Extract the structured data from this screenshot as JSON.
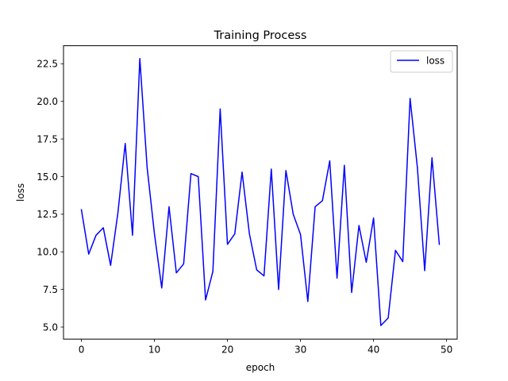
{
  "chart_data": {
    "type": "line",
    "title": "Training Process",
    "xlabel": "epoch",
    "ylabel": "loss",
    "xlim": [
      -2.45,
      51.45
    ],
    "ylim": [
      4.2,
      23.7
    ],
    "xticks": [
      0,
      10,
      20,
      30,
      40,
      50
    ],
    "yticks": [
      5.0,
      7.5,
      10.0,
      12.5,
      15.0,
      17.5,
      20.0,
      22.5
    ],
    "ytick_labels": [
      "5.0",
      "7.5",
      "10.0",
      "12.5",
      "15.0",
      "17.5",
      "20.0",
      "22.5"
    ],
    "xtick_labels": [
      "0",
      "10",
      "20",
      "30",
      "40",
      "50"
    ],
    "grid": false,
    "legend_position": "top-right",
    "series": [
      {
        "name": "loss",
        "color": "#0000ff",
        "x": [
          0,
          1,
          2,
          3,
          4,
          5,
          6,
          7,
          8,
          9,
          10,
          11,
          12,
          13,
          14,
          15,
          16,
          17,
          18,
          19,
          20,
          21,
          22,
          23,
          24,
          25,
          26,
          27,
          28,
          29,
          30,
          31,
          32,
          33,
          34,
          35,
          36,
          37,
          38,
          39,
          40,
          41,
          42,
          43,
          44,
          45,
          46,
          47,
          48,
          49
        ],
        "y": [
          12.8,
          9.85,
          11.1,
          11.6,
          9.1,
          12.6,
          17.2,
          11.1,
          22.85,
          15.6,
          11.2,
          7.6,
          13.0,
          8.6,
          9.2,
          15.2,
          15.0,
          6.8,
          8.7,
          19.5,
          10.5,
          11.2,
          15.3,
          11.2,
          8.8,
          8.4,
          15.5,
          7.5,
          15.4,
          12.5,
          11.15,
          6.7,
          13.0,
          13.4,
          16.05,
          8.25,
          15.75,
          7.3,
          11.75,
          9.3,
          12.25,
          5.1,
          5.6,
          10.1,
          9.35,
          20.2,
          15.6,
          8.75,
          16.25,
          10.5
        ]
      }
    ]
  }
}
